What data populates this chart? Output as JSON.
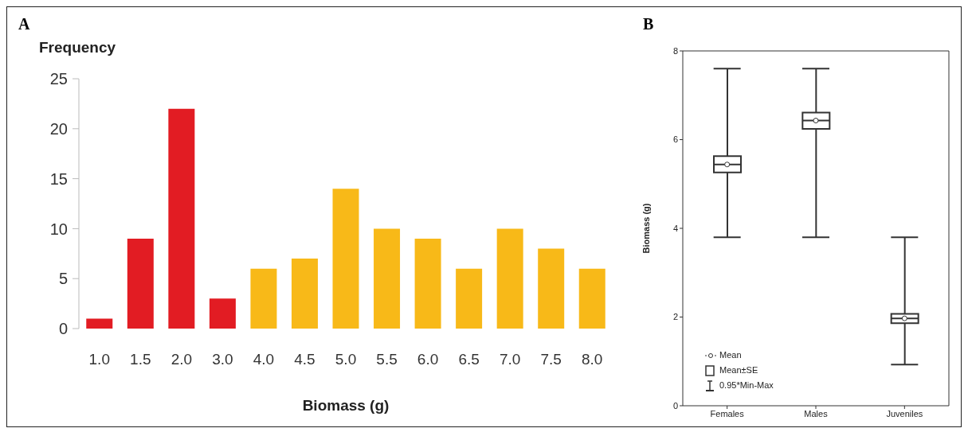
{
  "chart_data": [
    {
      "type": "bar",
      "title": "A",
      "ylabel": "Frequency",
      "xlabel": "Biomass (g)",
      "categories": [
        "1.0",
        "1.5",
        "2.0",
        "3.0",
        "4.0",
        "4.5",
        "5.0",
        "5.5",
        "6.0",
        "6.5",
        "7.0",
        "7.5",
        "8.0"
      ],
      "values": [
        1,
        9,
        22,
        3,
        6,
        7,
        14,
        10,
        9,
        6,
        10,
        8,
        6
      ],
      "colors": [
        "#e21c23",
        "#e21c23",
        "#e21c23",
        "#e21c23",
        "#f8b918",
        "#f8b918",
        "#f8b918",
        "#f8b918",
        "#f8b918",
        "#f8b918",
        "#f8b918",
        "#f8b918",
        "#f8b918"
      ],
      "ylim": [
        0,
        25
      ],
      "yticks": [
        0,
        5,
        10,
        15,
        20,
        25
      ]
    },
    {
      "type": "box",
      "title": "B",
      "ylabel": "Biomass (g)",
      "color": "#333333",
      "categories": [
        "Females",
        "Males",
        "Juveniles"
      ],
      "boxes": [
        {
          "low": 3.8,
          "q1": 5.26,
          "median": 5.44,
          "q3": 5.63,
          "high": 7.6,
          "mean": 5.44
        },
        {
          "low": 3.8,
          "q1": 6.24,
          "median": 6.43,
          "q3": 6.61,
          "high": 7.6,
          "mean": 6.43
        },
        {
          "low": 0.93,
          "q1": 1.86,
          "median": 1.97,
          "q3": 2.07,
          "high": 3.8,
          "mean": 1.97
        }
      ],
      "ylim": [
        0,
        8
      ],
      "yticks": [
        0,
        2,
        4,
        6,
        8
      ],
      "annotations": [
        "Mean",
        "Mean±SE",
        "0.95*Min-Max"
      ]
    }
  ]
}
